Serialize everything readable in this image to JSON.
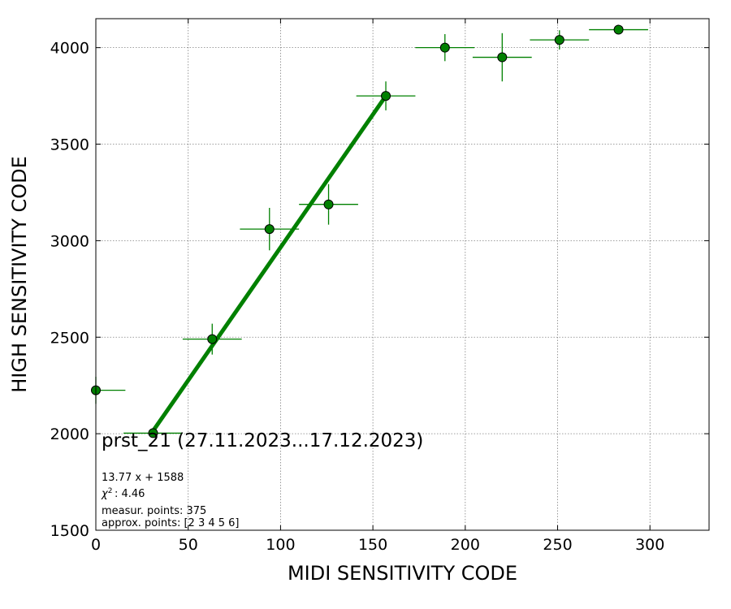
{
  "chart_data": {
    "type": "scatter",
    "title": "prst_21 (27.11.2023...17.12.2023)",
    "xlabel": "MIDI SENSITIVITY CODE",
    "ylabel": "HIGH SENSITIVITY CODE",
    "xlim": [
      0,
      332
    ],
    "ylim": [
      1500,
      4150
    ],
    "xticks": [
      0,
      50,
      100,
      150,
      200,
      250,
      300
    ],
    "yticks": [
      1500,
      2000,
      2500,
      3000,
      3500,
      4000
    ],
    "grid": true,
    "colors": {
      "point_fill": "#008000",
      "point_edge": "#000000",
      "errorbar": "#008000",
      "fit_line": "#008000"
    },
    "points": [
      {
        "x": 0,
        "y": 2225,
        "xerr": 16,
        "yerr": 70
      },
      {
        "x": 31,
        "y": 2003,
        "xerr": 16,
        "yerr": 20
      },
      {
        "x": 63,
        "y": 2490,
        "xerr": 16,
        "yerr": 80
      },
      {
        "x": 94,
        "y": 3060,
        "xerr": 16,
        "yerr": 110
      },
      {
        "x": 126,
        "y": 3188,
        "xerr": 16,
        "yerr": 105
      },
      {
        "x": 157,
        "y": 3750,
        "xerr": 16,
        "yerr": 75
      },
      {
        "x": 189,
        "y": 4000,
        "xerr": 16,
        "yerr": 70
      },
      {
        "x": 220,
        "y": 3950,
        "xerr": 16,
        "yerr": 125
      },
      {
        "x": 251,
        "y": 4040,
        "xerr": 16,
        "yerr": 50
      },
      {
        "x": 283,
        "y": 4093,
        "xerr": 16,
        "yerr": 15
      }
    ],
    "fit": {
      "slope": 13.77,
      "intercept": 1588,
      "x_range": [
        31,
        157
      ]
    },
    "annotations": [
      "13.77 x + 1588",
      ": 4.46",
      "measur. points: 375",
      "approx. points: [2 3 4 5 6]"
    ]
  }
}
